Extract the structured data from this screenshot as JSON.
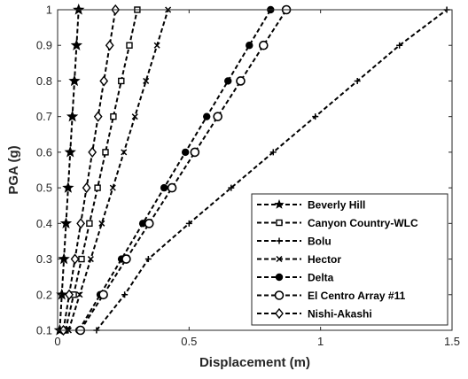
{
  "chart_data": {
    "type": "line",
    "xlabel": "Displacement (m)",
    "ylabel": "PGA (g)",
    "xlim": [
      0,
      1.5
    ],
    "ylim": [
      0.1,
      1
    ],
    "xticks": [
      0,
      0.5,
      1,
      1.5
    ],
    "xtick_labels": [
      "0",
      "0.5",
      "1",
      "1.5"
    ],
    "yticks": [
      0.1,
      0.2,
      0.3,
      0.4,
      0.5,
      0.6,
      0.7,
      0.8,
      0.9,
      1
    ],
    "ytick_labels": [
      "0.1",
      "0.2",
      "0.3",
      "0.4",
      "0.5",
      "0.6",
      "0.7",
      "0.8",
      "0.9",
      "1"
    ],
    "grid": false,
    "legend_position": "bottom-right",
    "line_style": "dashed",
    "color": "#000000",
    "y": [
      0.1,
      0.2,
      0.3,
      0.4,
      0.5,
      0.6,
      0.7,
      0.8,
      0.9,
      1.0
    ],
    "series": [
      {
        "name": "Beverly Hill",
        "marker": "star",
        "x": [
          0.008,
          0.016,
          0.024,
          0.032,
          0.04,
          0.048,
          0.056,
          0.064,
          0.072,
          0.08
        ]
      },
      {
        "name": "Canyon Country-WLC",
        "marker": "square",
        "x": [
          0.03,
          0.061,
          0.091,
          0.121,
          0.152,
          0.182,
          0.212,
          0.242,
          0.273,
          0.303
        ]
      },
      {
        "name": "Bolu",
        "marker": "plus",
        "x": [
          0.148,
          0.255,
          0.345,
          0.5,
          0.66,
          0.82,
          0.98,
          1.14,
          1.3,
          1.48
        ]
      },
      {
        "name": "Hector",
        "marker": "x",
        "x": [
          0.042,
          0.084,
          0.126,
          0.168,
          0.21,
          0.252,
          0.294,
          0.336,
          0.378,
          0.42
        ]
      },
      {
        "name": "Delta",
        "marker": "circle-filled",
        "x": [
          0.081,
          0.162,
          0.243,
          0.324,
          0.405,
          0.486,
          0.567,
          0.648,
          0.729,
          0.81
        ]
      },
      {
        "name": "El Centro Array #11",
        "marker": "circle-open",
        "x": [
          0.087,
          0.174,
          0.261,
          0.348,
          0.435,
          0.522,
          0.609,
          0.696,
          0.783,
          0.87
        ]
      },
      {
        "name": "Nishi-Akashi",
        "marker": "diamond",
        "x": [
          0.022,
          0.044,
          0.066,
          0.088,
          0.11,
          0.132,
          0.154,
          0.176,
          0.198,
          0.22
        ]
      }
    ]
  }
}
